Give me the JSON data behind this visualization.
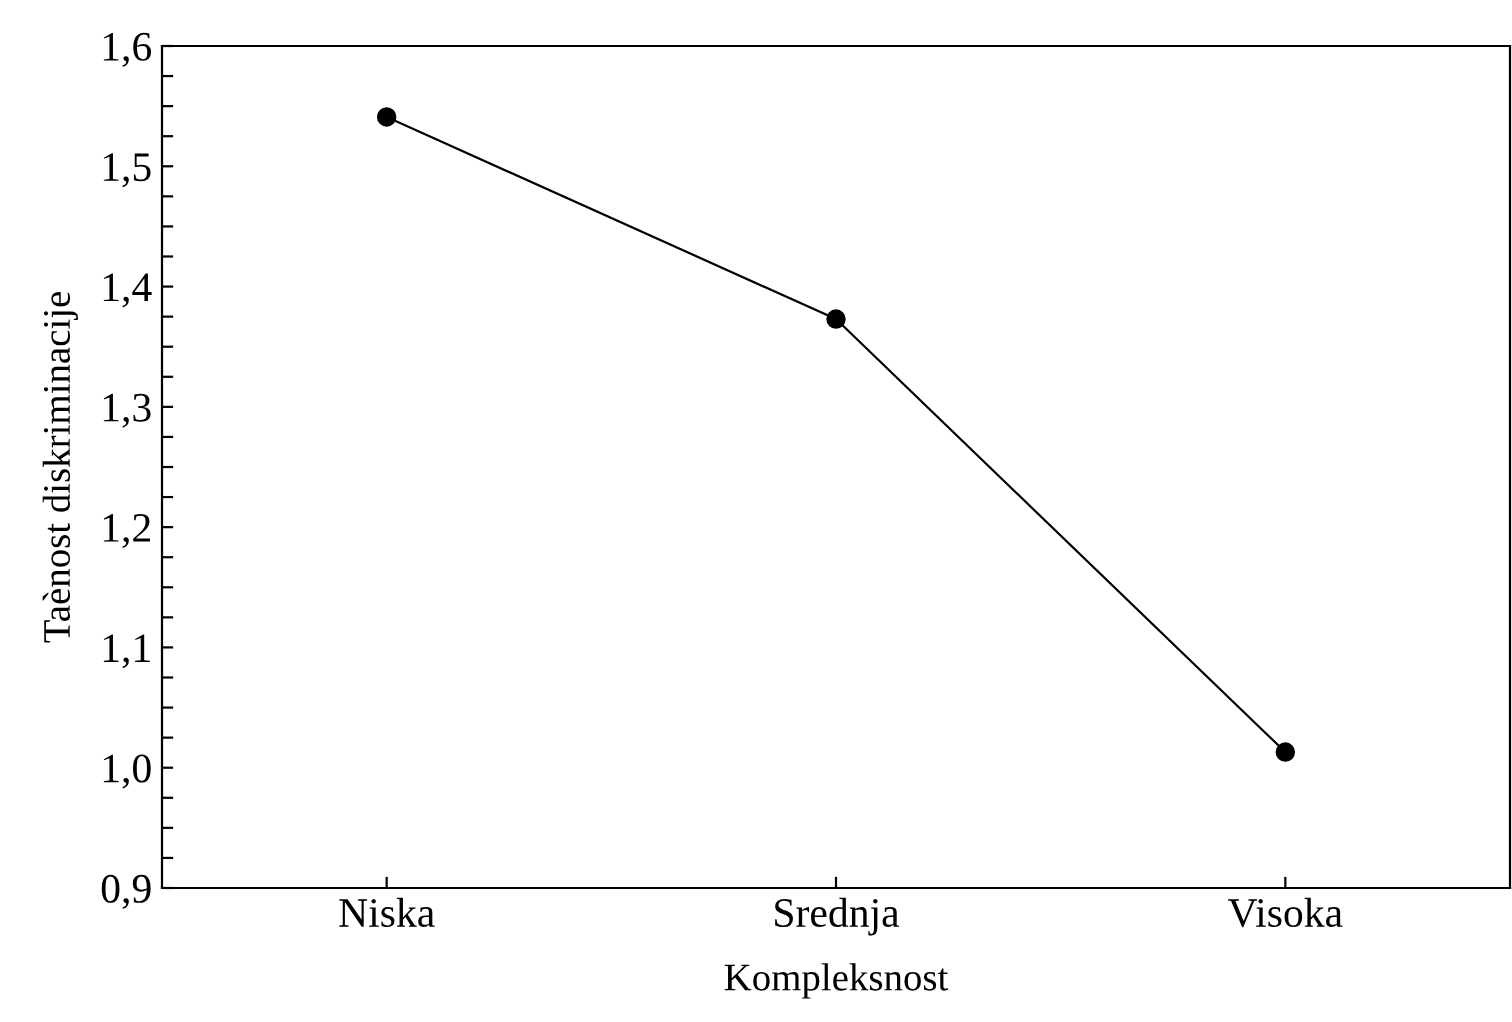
{
  "chart_data": {
    "type": "line",
    "xlabel": "Kompleksnost",
    "ylabel": "Taènost diskriminacije",
    "categories": [
      "Niska",
      "Srednja",
      "Visoka"
    ],
    "series": [
      {
        "color": "#000000",
        "values": [
          1.541,
          1.373,
          1.013
        ]
      }
    ],
    "ylim": [
      0.9,
      1.6
    ],
    "yticks": [
      {
        "value": 0.9,
        "label": "0,9"
      },
      {
        "value": 0.925,
        "label": null
      },
      {
        "value": 0.95,
        "label": null
      },
      {
        "value": 0.975,
        "label": null
      },
      {
        "value": 1.0,
        "label": "1,0"
      },
      {
        "value": 1.025,
        "label": null
      },
      {
        "value": 1.05,
        "label": null
      },
      {
        "value": 1.075,
        "label": null
      },
      {
        "value": 1.1,
        "label": "1,1"
      },
      {
        "value": 1.125,
        "label": null
      },
      {
        "value": 1.15,
        "label": null
      },
      {
        "value": 1.175,
        "label": null
      },
      {
        "value": 1.2,
        "label": "1,2"
      },
      {
        "value": 1.225,
        "label": null
      },
      {
        "value": 1.25,
        "label": null
      },
      {
        "value": 1.275,
        "label": null
      },
      {
        "value": 1.3,
        "label": "1,3"
      },
      {
        "value": 1.325,
        "label": null
      },
      {
        "value": 1.35,
        "label": null
      },
      {
        "value": 1.375,
        "label": null
      },
      {
        "value": 1.4,
        "label": "1,4"
      },
      {
        "value": 1.425,
        "label": null
      },
      {
        "value": 1.45,
        "label": null
      },
      {
        "value": 1.475,
        "label": null
      },
      {
        "value": 1.5,
        "label": "1,5"
      },
      {
        "value": 1.525,
        "label": null
      },
      {
        "value": 1.55,
        "label": null
      },
      {
        "value": 1.575,
        "label": null
      },
      {
        "value": 1.6,
        "label": "1,6"
      }
    ],
    "grid": false,
    "legend": false,
    "marker": "circle",
    "line_style": "solid"
  }
}
